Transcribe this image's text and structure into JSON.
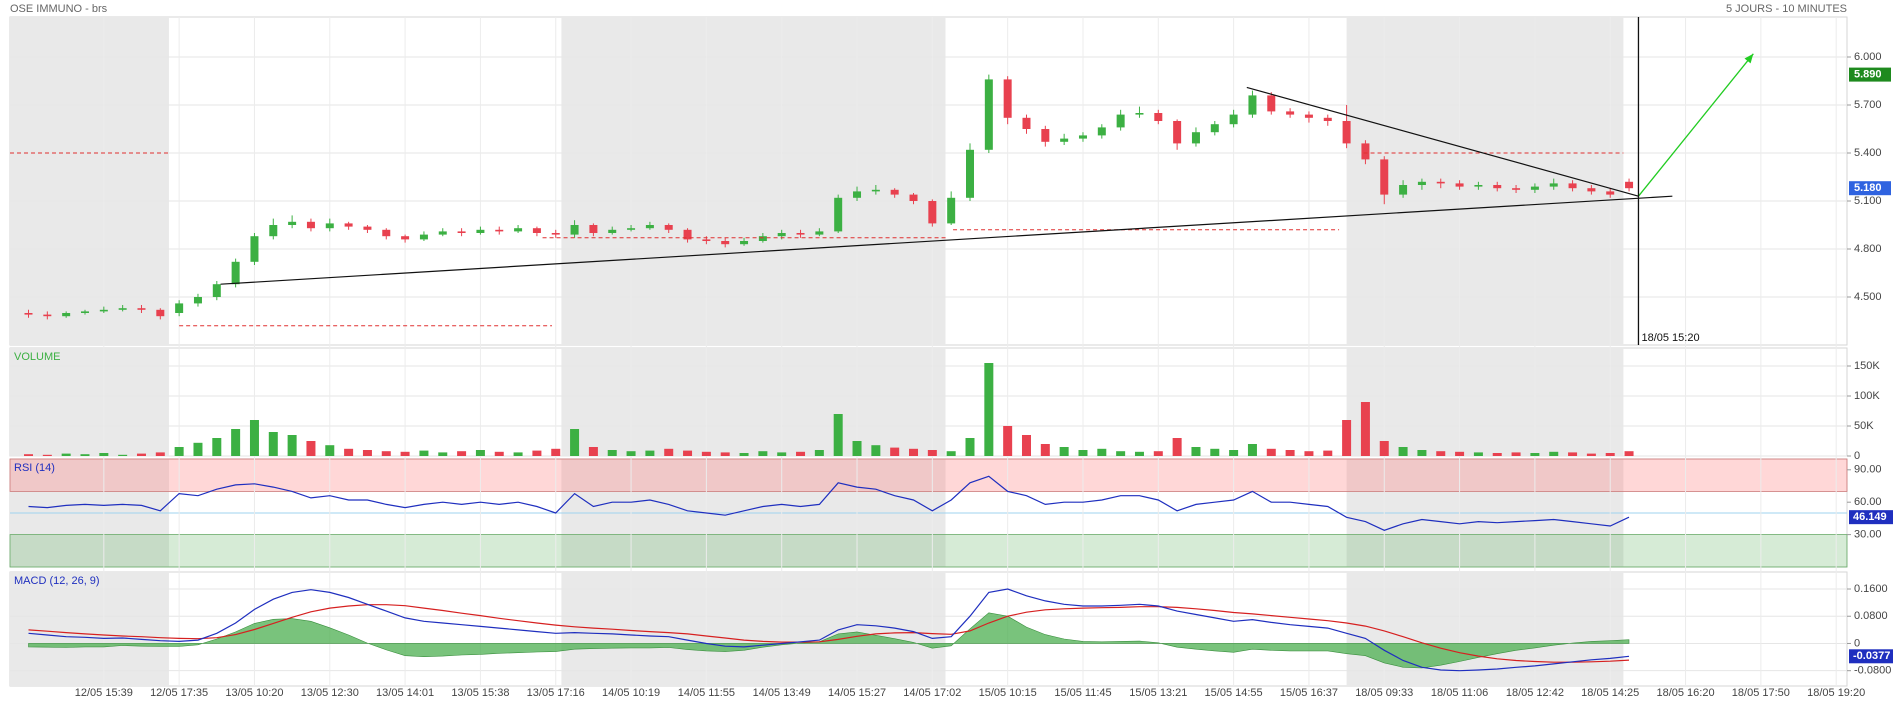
{
  "chart_data": {
    "type": "candlestick",
    "title": "OSE IMMUNO - brs",
    "subtitle": "5 JOURS - 10 MINUTES",
    "categories": [
      null,
      null,
      null,
      null,
      "12/05 15:39",
      null,
      null,
      null,
      "12/05 17:35",
      null,
      null,
      null,
      "13/05 10:20",
      null,
      null,
      null,
      "13/05 12:30",
      null,
      null,
      null,
      "13/05 14:01",
      null,
      null,
      null,
      "13/05 15:38",
      null,
      null,
      null,
      "13/05 17:16",
      null,
      null,
      null,
      "14/05 10:19",
      null,
      null,
      null,
      "14/05 11:55",
      null,
      null,
      null,
      "14/05 13:49",
      null,
      null,
      null,
      "14/05 15:27",
      null,
      null,
      null,
      "14/05 17:02",
      null,
      null,
      null,
      "15/05 10:15",
      null,
      null,
      null,
      "15/05 11:45",
      null,
      null,
      null,
      "15/05 13:21",
      null,
      null,
      null,
      "15/05 14:55",
      null,
      null,
      null,
      "15/05 16:37",
      null,
      null,
      null,
      "18/05 09:33",
      null,
      null,
      null,
      "18/05 11:06",
      null,
      null,
      null,
      "18/05 12:42",
      null,
      null,
      null,
      "18/05 14:25",
      null,
      null,
      null,
      "18/05 16:20",
      null,
      null,
      null,
      "18/05 17:50",
      null,
      null,
      null,
      "18/05 19:20"
    ],
    "open": [
      4.4,
      4.39,
      4.38,
      4.4,
      4.41,
      4.42,
      4.43,
      4.42,
      4.4,
      4.46,
      4.5,
      4.58,
      4.72,
      4.88,
      4.95,
      4.97,
      4.93,
      4.96,
      4.94,
      4.92,
      4.88,
      4.86,
      4.89,
      4.91,
      4.9,
      4.92,
      4.91,
      4.93,
      4.9,
      4.89,
      4.95,
      4.9,
      4.92,
      4.93,
      4.95,
      4.92,
      4.86,
      4.85,
      4.83,
      4.85,
      4.88,
      4.9,
      4.89,
      4.91,
      5.12,
      5.16,
      5.17,
      5.14,
      5.1,
      4.96,
      5.12,
      5.42,
      5.86,
      5.62,
      5.55,
      5.47,
      5.49,
      5.51,
      5.56,
      5.64,
      5.65,
      5.6,
      5.46,
      5.53,
      5.58,
      5.64,
      5.76,
      5.66,
      5.64,
      5.62,
      5.6,
      5.46,
      5.36,
      5.14,
      5.2,
      5.22,
      5.21,
      5.19,
      5.2,
      5.18,
      5.17,
      5.19,
      5.21,
      5.18,
      5.16,
      5.22,
      null,
      null,
      null,
      null,
      null,
      null,
      null,
      null,
      null,
      null,
      null
    ],
    "high": [
      4.42,
      4.41,
      4.41,
      4.42,
      4.44,
      4.45,
      4.45,
      4.43,
      4.48,
      4.52,
      4.6,
      4.74,
      4.9,
      4.99,
      5.01,
      4.99,
      4.99,
      4.97,
      4.95,
      4.93,
      4.89,
      4.91,
      4.93,
      4.93,
      4.94,
      4.94,
      4.95,
      4.94,
      4.92,
      4.98,
      4.96,
      4.94,
      4.95,
      4.97,
      4.96,
      4.93,
      4.88,
      4.87,
      4.87,
      4.9,
      4.92,
      4.92,
      4.93,
      5.14,
      5.19,
      5.2,
      5.18,
      5.15,
      5.11,
      5.16,
      5.46,
      5.89,
      5.88,
      5.64,
      5.57,
      5.52,
      5.53,
      5.58,
      5.67,
      5.69,
      5.67,
      5.61,
      5.56,
      5.6,
      5.67,
      5.79,
      5.78,
      5.68,
      5.66,
      5.64,
      5.7,
      5.48,
      5.38,
      5.23,
      5.24,
      5.24,
      5.23,
      5.22,
      5.22,
      5.2,
      5.21,
      5.24,
      5.23,
      5.2,
      5.18,
      5.24,
      null,
      null,
      null,
      null,
      null,
      null,
      null,
      null,
      null,
      null,
      null
    ],
    "low": [
      4.37,
      4.36,
      4.37,
      4.39,
      4.4,
      4.41,
      4.4,
      4.36,
      4.38,
      4.44,
      4.48,
      4.56,
      4.7,
      4.86,
      4.93,
      4.91,
      4.91,
      4.92,
      4.9,
      4.86,
      4.84,
      4.85,
      4.88,
      4.88,
      4.89,
      4.89,
      4.9,
      4.88,
      4.87,
      4.87,
      4.88,
      4.89,
      4.91,
      4.92,
      4.9,
      4.84,
      4.83,
      4.81,
      4.82,
      4.84,
      4.86,
      4.87,
      4.88,
      4.9,
      5.1,
      5.14,
      5.12,
      5.08,
      4.94,
      4.95,
      5.1,
      5.4,
      5.58,
      5.52,
      5.44,
      5.45,
      5.47,
      5.49,
      5.54,
      5.62,
      5.58,
      5.42,
      5.44,
      5.51,
      5.56,
      5.62,
      5.64,
      5.62,
      5.59,
      5.57,
      5.43,
      5.33,
      5.08,
      5.12,
      5.17,
      5.18,
      5.17,
      5.17,
      5.16,
      5.15,
      5.15,
      5.17,
      5.16,
      5.14,
      5.12,
      5.16,
      null,
      null,
      null,
      null,
      null,
      null,
      null,
      null,
      null,
      null,
      null
    ],
    "close": [
      4.39,
      4.38,
      4.4,
      4.41,
      4.42,
      4.43,
      4.42,
      4.38,
      4.46,
      4.5,
      4.58,
      4.72,
      4.88,
      4.95,
      4.97,
      4.93,
      4.96,
      4.94,
      4.92,
      4.88,
      4.86,
      4.89,
      4.91,
      4.9,
      4.92,
      4.91,
      4.93,
      4.9,
      4.89,
      4.95,
      4.9,
      4.92,
      4.93,
      4.95,
      4.92,
      4.86,
      4.85,
      4.83,
      4.85,
      4.88,
      4.9,
      4.89,
      4.91,
      5.12,
      5.16,
      5.17,
      5.14,
      5.1,
      4.96,
      5.12,
      5.42,
      5.86,
      5.62,
      5.55,
      5.47,
      5.49,
      5.51,
      5.56,
      5.64,
      5.65,
      5.6,
      5.46,
      5.53,
      5.58,
      5.64,
      5.76,
      5.66,
      5.64,
      5.62,
      5.6,
      5.46,
      5.36,
      5.14,
      5.2,
      5.22,
      5.21,
      5.19,
      5.2,
      5.18,
      5.17,
      5.19,
      5.21,
      5.18,
      5.16,
      5.14,
      5.18,
      null,
      null,
      null,
      null,
      null,
      null,
      null,
      null,
      null,
      null,
      null
    ],
    "up_color": "#3cb043",
    "down_color": "#e8414f",
    "ylim": [
      4.2,
      6.25
    ],
    "yticks": [
      {
        "value": 4.5,
        "label": "4.500"
      },
      {
        "value": 4.8,
        "label": "4.800"
      },
      {
        "value": 5.1,
        "label": "5.100"
      },
      {
        "value": 5.4,
        "label": "5.400"
      },
      {
        "value": 5.7,
        "label": "5.700"
      },
      {
        "value": 6.0,
        "label": "6.000"
      }
    ],
    "grid": true,
    "markers": [
      {
        "value": 5.89,
        "label": "5.890",
        "color": "#1e8a1e"
      },
      {
        "value": 5.18,
        "label": "5.180",
        "color": "#2f63e0"
      }
    ],
    "drawings": {
      "trend_lines": [
        {
          "x": [
            10.2,
            87.3
          ],
          "y": [
            4.58,
            5.13
          ]
        },
        {
          "x": [
            64.7,
            85.5
          ],
          "y": [
            5.81,
            5.13
          ]
        }
      ],
      "arrow": {
        "x": [
          85.5,
          91.6
        ],
        "y": [
          5.13,
          6.02
        ],
        "color": "#22cc22"
      },
      "cursor": {
        "x": 85.5,
        "label": "18/05 15:20"
      },
      "levels": [
        {
          "y": 5.4,
          "x": [
            -1,
            7.5
          ]
        },
        {
          "y": 4.32,
          "x": [
            8.0,
            27.8
          ]
        },
        {
          "y": 4.87,
          "x": [
            27.3,
            48.8
          ]
        },
        {
          "y": 4.92,
          "x": [
            49.1,
            69.6
          ]
        },
        {
          "y": 5.4,
          "x": [
            70.9,
            84.7
          ]
        }
      ],
      "level_color": "#e03030"
    },
    "volume": {
      "title": "VOLUME",
      "values": [
        3000,
        2000,
        4000,
        3000,
        5000,
        2000,
        4000,
        6000,
        15000,
        22000,
        30000,
        45000,
        60000,
        40000,
        35000,
        25000,
        18000,
        12000,
        10000,
        8000,
        7000,
        9000,
        6000,
        8000,
        10000,
        7000,
        6000,
        9000,
        12000,
        45000,
        15000,
        10000,
        8000,
        9000,
        12000,
        9000,
        7000,
        6000,
        5000,
        8000,
        6000,
        7000,
        10000,
        70000,
        25000,
        18000,
        14000,
        12000,
        10000,
        8000,
        30000,
        155000,
        50000,
        35000,
        20000,
        15000,
        10000,
        12000,
        8000,
        7000,
        8000,
        30000,
        15000,
        12000,
        10000,
        20000,
        12000,
        10000,
        8000,
        9000,
        60000,
        90000,
        25000,
        15000,
        10000,
        8000,
        7000,
        6000,
        5000,
        6000,
        5000,
        7000,
        6000,
        4000,
        5000,
        8000,
        null,
        null,
        null,
        null,
        null,
        null,
        null,
        null,
        null,
        null,
        null
      ],
      "ylim": [
        0,
        180000
      ],
      "yticks": [
        0,
        {
          "value": 50000,
          "label": "50K"
        },
        {
          "value": 100000,
          "label": "100K"
        },
        {
          "value": 150000,
          "label": "150K"
        }
      ]
    },
    "rsi": {
      "title": "RSI (14)",
      "color": "#1f2fbf",
      "values": [
        56,
        55,
        57,
        58,
        57,
        58,
        57,
        52,
        68,
        66,
        72,
        76,
        77,
        74,
        70,
        64,
        66,
        62,
        62,
        58,
        55,
        58,
        60,
        58,
        60,
        58,
        60,
        56,
        50,
        68,
        56,
        60,
        60,
        62,
        58,
        52,
        50,
        48,
        52,
        56,
        58,
        56,
        58,
        78,
        74,
        72,
        66,
        62,
        52,
        62,
        78,
        84,
        70,
        66,
        58,
        60,
        60,
        62,
        66,
        66,
        62,
        52,
        58,
        60,
        62,
        70,
        60,
        60,
        58,
        56,
        46,
        42,
        34,
        40,
        44,
        42,
        40,
        42,
        41,
        42,
        43,
        44,
        42,
        40,
        38,
        46.149,
        null,
        null,
        null,
        null,
        null,
        null,
        null,
        null,
        null,
        null,
        null
      ],
      "ylim": [
        0,
        100
      ],
      "yticks": [
        {
          "value": 30,
          "label": "30.00"
        },
        {
          "value": 60,
          "label": "60.00"
        },
        {
          "value": 90,
          "label": "90.00"
        }
      ],
      "overbought": [
        70,
        100
      ],
      "oversold": [
        0,
        30
      ],
      "midline": 50
    },
    "macd": {
      "title": "MACD (12, 26, 9)",
      "macd_color": "#1f2fbf",
      "signal_color": "#d62020",
      "histogram_color": "#4caf50",
      "macd": [
        0.03,
        0.025,
        0.02,
        0.018,
        0.015,
        0.016,
        0.012,
        0.008,
        0.006,
        0.01,
        0.03,
        0.06,
        0.1,
        0.13,
        0.15,
        0.158,
        0.15,
        0.135,
        0.115,
        0.095,
        0.075,
        0.065,
        0.06,
        0.055,
        0.05,
        0.045,
        0.04,
        0.035,
        0.03,
        0.032,
        0.03,
        0.028,
        0.025,
        0.022,
        0.02,
        0.01,
        0.0,
        -0.008,
        -0.01,
        -0.005,
        0.0,
        0.005,
        0.01,
        0.04,
        0.055,
        0.052,
        0.045,
        0.035,
        0.015,
        0.02,
        0.08,
        0.15,
        0.16,
        0.14,
        0.125,
        0.115,
        0.11,
        0.11,
        0.112,
        0.115,
        0.11,
        0.095,
        0.085,
        0.075,
        0.065,
        0.07,
        0.062,
        0.055,
        0.05,
        0.045,
        0.03,
        0.015,
        -0.02,
        -0.05,
        -0.07,
        -0.078,
        -0.08,
        -0.078,
        -0.075,
        -0.07,
        -0.066,
        -0.06,
        -0.054,
        -0.048,
        -0.044,
        -0.0377,
        null,
        null,
        null,
        null,
        null,
        null,
        null,
        null,
        null,
        null,
        null
      ],
      "signal": [
        0.04,
        0.036,
        0.032,
        0.028,
        0.025,
        0.022,
        0.02,
        0.017,
        0.015,
        0.014,
        0.017,
        0.026,
        0.041,
        0.059,
        0.077,
        0.093,
        0.104,
        0.11,
        0.114,
        0.114,
        0.111,
        0.104,
        0.097,
        0.089,
        0.082,
        0.074,
        0.067,
        0.06,
        0.054,
        0.049,
        0.045,
        0.042,
        0.038,
        0.035,
        0.032,
        0.028,
        0.022,
        0.016,
        0.01,
        0.006,
        0.004,
        0.004,
        0.005,
        0.012,
        0.021,
        0.028,
        0.031,
        0.032,
        0.029,
        0.027,
        0.037,
        0.06,
        0.08,
        0.092,
        0.099,
        0.102,
        0.104,
        0.105,
        0.106,
        0.108,
        0.108,
        0.106,
        0.102,
        0.097,
        0.091,
        0.087,
        0.082,
        0.077,
        0.072,
        0.067,
        0.06,
        0.051,
        0.037,
        0.02,
        0.002,
        -0.014,
        -0.027,
        -0.037,
        -0.045,
        -0.05,
        -0.053,
        -0.055,
        -0.055,
        -0.054,
        -0.052,
        -0.049,
        null,
        null,
        null,
        null,
        null,
        null,
        null,
        null,
        null,
        null,
        null
      ],
      "histogram": [
        -0.01,
        -0.011,
        -0.012,
        -0.01,
        -0.01,
        -0.006,
        -0.008,
        -0.009,
        -0.009,
        -0.004,
        0.013,
        0.034,
        0.059,
        0.071,
        0.073,
        0.065,
        0.046,
        0.025,
        0.001,
        -0.019,
        -0.036,
        -0.039,
        -0.037,
        -0.034,
        -0.032,
        -0.029,
        -0.027,
        -0.025,
        -0.024,
        -0.017,
        -0.015,
        -0.014,
        -0.013,
        -0.013,
        -0.012,
        -0.018,
        -0.022,
        -0.024,
        -0.02,
        -0.011,
        -0.004,
        0.001,
        0.005,
        0.028,
        0.034,
        0.024,
        0.014,
        0.003,
        -0.014,
        -0.007,
        0.043,
        0.09,
        0.08,
        0.048,
        0.026,
        0.013,
        0.006,
        0.005,
        0.006,
        0.007,
        0.002,
        -0.011,
        -0.017,
        -0.022,
        -0.026,
        -0.017,
        -0.02,
        -0.022,
        -0.022,
        -0.022,
        -0.03,
        -0.036,
        -0.057,
        -0.07,
        -0.072,
        -0.064,
        -0.053,
        -0.041,
        -0.03,
        -0.02,
        -0.013,
        -0.005,
        0.001,
        0.006,
        0.008,
        0.011,
        null,
        null,
        null,
        null,
        null,
        null,
        null,
        null,
        null,
        null,
        null
      ],
      "ylim": [
        -0.125,
        0.21
      ],
      "yticks": [
        {
          "value": -0.08,
          "label": "-0.0800"
        },
        0,
        {
          "value": 0.08,
          "label": "0.0800"
        },
        {
          "value": 0.16,
          "label": "0.1600"
        }
      ]
    }
  }
}
